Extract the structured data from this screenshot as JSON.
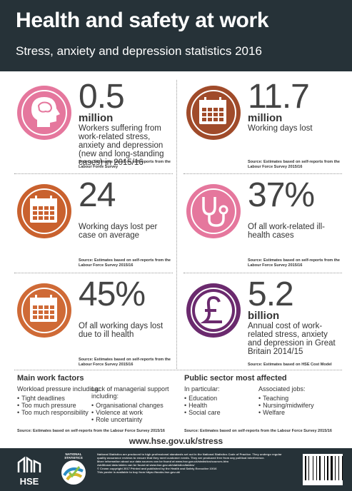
{
  "header": {
    "title": "Health and safety at work",
    "subtitle": "Stress, anxiety and depression statistics 2016"
  },
  "stats": [
    {
      "value": "0.5",
      "unit": "million",
      "description": "Workers suffering from work-related stress, anxiety and depression (new and long-standing cases) in 2015/16",
      "source": "Source: Estimates based on self-reports from the Labour Force Survey"
    },
    {
      "value": "11.7",
      "unit": "million",
      "description": "Working days lost",
      "source": "Source: Estimates based on self-reports from the Labour Force Survey 2015/16"
    },
    {
      "value": "24",
      "description": "Working days lost per case on average",
      "source": "Source: Estimates based on self-reports from the Labour Force Survey 2015/16"
    },
    {
      "value": "37%",
      "description": "Of all work-related ill-health cases",
      "source": "Source: Estimates based on self-reports from the Labour Force Survey 2015/16"
    },
    {
      "value": "45%",
      "description": "Of all working days lost due to ill health",
      "source": "Source: Estimates based on self-reports from the Labour Force Survey 2015/16"
    },
    {
      "value": "5.2",
      "unit": "billion",
      "description": "Annual cost of work-related stress, anxiety and depression in Great Britain 2014/15",
      "source": "Source: Estimates based on HSE Cost Model"
    }
  ],
  "sections": [
    {
      "title": "Main work factors",
      "columns": [
        {
          "heading": "Workload pressure including:",
          "items": [
            "Tight deadlines",
            "Too much pressure",
            "Too much responsibility"
          ]
        },
        {
          "heading": "Lack of managerial support including:",
          "items": [
            "Organisational changes",
            "Violence at work",
            "Role uncertainty"
          ]
        }
      ],
      "source": "Source: Estimates based on self-reports from the Labour Force Survey 2015/16"
    },
    {
      "title": "Public sector most affected",
      "columns": [
        {
          "heading": "In particular:",
          "items": [
            "Education",
            "Health",
            "Social care"
          ]
        },
        {
          "heading": "Associated jobs:",
          "items": [
            "Teaching",
            "Nursing/midwifery",
            "Welfare"
          ]
        }
      ],
      "source": "Source: Estimates based on self-reports from the Labour Force Survey 2015/16"
    }
  ],
  "url": "www.hse.gov.uk/stress",
  "footer": {
    "logos": [
      "HSE",
      "NATIONAL STATISTICS"
    ],
    "notes": [
      "National Statistics are produced to high professional standards set out in the National Statistics Code of Practice. They undergo regular quality assurance reviews to ensure that they meet customer needs. They are produced free from any political interference.",
      "More information about our data sources can be found at www.hse.gov.uk/statistics/sources.htm",
      "Additional data tables can be found at www.hse.gov.uk/statistics/tables/",
      "© Crown copyright 2017  Printed and published by the Health and Safety Executive  10/16",
      "This poster is available to buy from https://books.hse.gov.uk/"
    ]
  }
}
